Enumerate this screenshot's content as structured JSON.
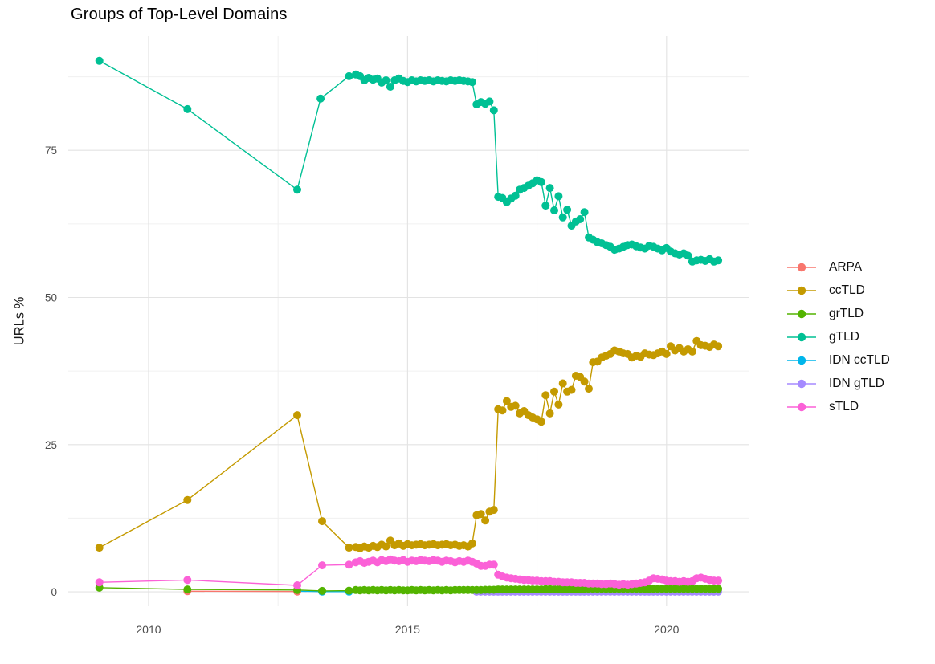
{
  "title": "Groups of Top-Level Domains",
  "colors": {
    "background": "#ffffff",
    "grid_major": "#e3e3e3",
    "grid_minor": "#f0f0f0",
    "axis_text": "#4d4d4d",
    "title_text": "#000000",
    "legend_text": "#111111"
  },
  "chart_data": {
    "type": "line",
    "title": "Groups of Top-Level Domains",
    "xlabel": "",
    "ylabel": "URLs %",
    "x_ticks": [
      2010,
      2015,
      2020
    ],
    "x_minor": [
      2012.5,
      2017.5
    ],
    "y_ticks": [
      0,
      25,
      50,
      75
    ],
    "y_minor": [
      12.5,
      37.5,
      62.5,
      87.5
    ],
    "xlim": [
      2008.45,
      2021.6
    ],
    "ylim": [
      -2.45,
      94.4
    ],
    "grid": true,
    "legend_position": "right",
    "draw_order": [
      "IDN ccTLD",
      "ARPA",
      "IDN gTLD",
      "ccTLD",
      "gTLD",
      "grTLD",
      "sTLD"
    ],
    "series": [
      {
        "name": "ARPA",
        "color": "#F8766D",
        "early": [
          [
            2010.75,
            0.1
          ],
          [
            2012.87,
            0.05
          ]
        ]
      },
      {
        "name": "ccTLD",
        "color": "#C49A00",
        "early": [
          [
            2009.05,
            7.5
          ],
          [
            2010.75,
            15.6
          ],
          [
            2012.87,
            30.0
          ],
          [
            2013.35,
            12.0
          ],
          [
            2013.87,
            7.5
          ]
        ],
        "monthly_start": 2014.0,
        "monthly_step": 0.0833,
        "monthly": [
          7.6,
          7.4,
          7.7,
          7.5,
          7.8,
          7.6,
          8.0,
          7.7,
          8.7,
          7.9,
          8.2,
          7.8,
          8.1,
          7.9,
          8.0,
          8.1,
          7.9,
          8.0,
          8.1,
          7.9,
          8.0,
          8.1,
          7.9,
          8.0,
          7.8,
          7.9,
          7.7,
          8.2,
          13.0,
          13.2,
          12.1,
          13.6,
          13.9,
          31.0,
          30.8,
          32.4,
          31.4,
          31.6,
          30.3,
          30.7,
          30.0,
          29.6,
          29.3,
          28.9,
          33.4,
          30.3,
          34.0,
          31.8,
          35.4,
          34.0,
          34.3,
          36.7,
          36.5,
          35.7,
          34.5,
          39.0,
          39.1,
          39.8,
          40.1,
          40.4,
          41.0,
          40.8,
          40.5,
          40.4,
          39.8,
          40.1,
          39.9,
          40.5,
          40.3,
          40.2,
          40.5,
          40.8,
          40.4,
          41.7,
          41.0,
          41.4,
          40.8,
          41.2,
          40.8,
          42.6,
          41.9,
          41.8,
          41.6,
          42.0,
          41.7
        ]
      },
      {
        "name": "grTLD",
        "color": "#53B400",
        "early": [
          [
            2009.05,
            0.7
          ],
          [
            2010.75,
            0.4
          ],
          [
            2012.87,
            0.3
          ],
          [
            2013.35,
            0.15
          ],
          [
            2013.87,
            0.2
          ]
        ],
        "monthly_start": 2014.0,
        "monthly_step": 0.0833,
        "monthly": [
          0.3,
          0.25,
          0.3,
          0.25,
          0.3,
          0.25,
          0.3,
          0.25,
          0.3,
          0.25,
          0.3,
          0.25,
          0.25,
          0.3,
          0.25,
          0.3,
          0.25,
          0.3,
          0.25,
          0.3,
          0.25,
          0.3,
          0.25,
          0.3,
          0.3,
          0.3,
          0.3,
          0.3,
          0.3,
          0.3,
          0.35,
          0.35,
          0.35,
          0.4,
          0.4,
          0.4,
          0.4,
          0.4,
          0.4,
          0.4,
          0.4,
          0.4,
          0.4,
          0.4,
          0.45,
          0.45,
          0.45,
          0.45,
          0.45,
          0.45,
          0.45,
          0.45,
          0.45,
          0.45,
          0.5,
          0.5,
          0.5,
          0.5,
          0.5,
          0.5,
          0.5,
          0.5,
          0.5,
          0.5,
          0.5,
          0.5,
          0.5,
          0.5,
          0.5,
          0.5,
          0.5,
          0.5,
          0.5,
          0.5,
          0.5,
          0.5,
          0.5,
          0.5,
          0.5,
          0.5,
          0.5,
          0.5,
          0.5,
          0.5,
          0.5
        ]
      },
      {
        "name": "gTLD",
        "color": "#00C094",
        "early": [
          [
            2009.05,
            90.2
          ],
          [
            2010.75,
            82.0
          ],
          [
            2012.87,
            68.3
          ],
          [
            2013.32,
            83.8
          ],
          [
            2013.87,
            87.6
          ]
        ],
        "monthly_start": 2014.0,
        "monthly_step": 0.0833,
        "monthly": [
          87.9,
          87.6,
          86.9,
          87.3,
          87.0,
          87.2,
          86.5,
          86.9,
          85.8,
          86.9,
          87.2,
          86.8,
          86.6,
          86.9,
          86.7,
          86.9,
          86.8,
          86.9,
          86.7,
          86.9,
          86.8,
          86.7,
          86.9,
          86.8,
          86.9,
          86.8,
          86.7,
          86.6,
          82.8,
          83.2,
          82.9,
          83.3,
          81.8,
          67.1,
          66.9,
          66.2,
          66.8,
          67.3,
          68.3,
          68.6,
          69.0,
          69.4,
          69.9,
          69.6,
          65.6,
          68.6,
          64.8,
          67.2,
          63.6,
          64.9,
          62.2,
          62.9,
          63.3,
          64.5,
          60.2,
          59.8,
          59.4,
          59.2,
          58.9,
          58.6,
          58.1,
          58.3,
          58.6,
          58.9,
          59.0,
          58.7,
          58.5,
          58.3,
          58.8,
          58.6,
          58.3,
          58.0,
          58.4,
          57.8,
          57.5,
          57.3,
          57.5,
          57.1,
          56.1,
          56.3,
          56.4,
          56.2,
          56.5,
          56.1,
          56.3
        ]
      },
      {
        "name": "IDN ccTLD",
        "color": "#00B6EB",
        "early": [
          [
            2012.87,
            0.1
          ],
          [
            2013.35,
            0.03
          ],
          [
            2013.87,
            0.03
          ]
        ]
      },
      {
        "name": "IDN gTLD",
        "color": "#A58AFF",
        "monthly_start": 2016.33,
        "monthly_step": 0.0833,
        "monthly": [
          0.02,
          0.02,
          0.02,
          0.02,
          0.02,
          0.02,
          0.02,
          0.02,
          0.02,
          0.02,
          0.02,
          0.02,
          0.02,
          0.02,
          0.02,
          0.02,
          0.02,
          0.02,
          0.02,
          0.02,
          0.02,
          0.02,
          0.02,
          0.02,
          0.02,
          0.02,
          0.02,
          0.02,
          0.02,
          0.02,
          0.02,
          0.02,
          0.02,
          0.02,
          0.02,
          0.02,
          0.02,
          0.02,
          0.02,
          0.02,
          0.02,
          0.02,
          0.02,
          0.02,
          0.02,
          0.02,
          0.02,
          0.02,
          0.02,
          0.02,
          0.02,
          0.02,
          0.02,
          0.02,
          0.02,
          0.02,
          0.02
        ]
      },
      {
        "name": "sTLD",
        "color": "#FB61D7",
        "early": [
          [
            2009.05,
            1.6
          ],
          [
            2010.75,
            2.0
          ],
          [
            2012.87,
            1.1
          ],
          [
            2013.35,
            4.5
          ],
          [
            2013.87,
            4.6
          ]
        ],
        "monthly_start": 2014.0,
        "monthly_step": 0.0833,
        "monthly": [
          5.0,
          5.2,
          4.9,
          5.1,
          5.3,
          5.0,
          5.4,
          5.2,
          5.5,
          5.3,
          5.2,
          5.4,
          5.1,
          5.3,
          5.2,
          5.4,
          5.3,
          5.2,
          5.4,
          5.3,
          5.1,
          5.3,
          5.2,
          5.0,
          5.2,
          5.1,
          5.3,
          5.1,
          4.8,
          4.4,
          4.4,
          4.6,
          4.6,
          2.9,
          2.6,
          2.4,
          2.3,
          2.2,
          2.1,
          2.0,
          2.0,
          1.9,
          1.9,
          1.8,
          1.8,
          1.8,
          1.7,
          1.7,
          1.6,
          1.6,
          1.6,
          1.5,
          1.5,
          1.5,
          1.4,
          1.4,
          1.4,
          1.3,
          1.3,
          1.4,
          1.3,
          1.2,
          1.3,
          1.2,
          1.3,
          1.4,
          1.5,
          1.6,
          1.9,
          2.3,
          2.2,
          2.1,
          1.9,
          1.8,
          1.8,
          1.7,
          1.8,
          1.7,
          1.8,
          2.3,
          2.4,
          2.2,
          2.0,
          1.9,
          1.9
        ]
      }
    ]
  }
}
